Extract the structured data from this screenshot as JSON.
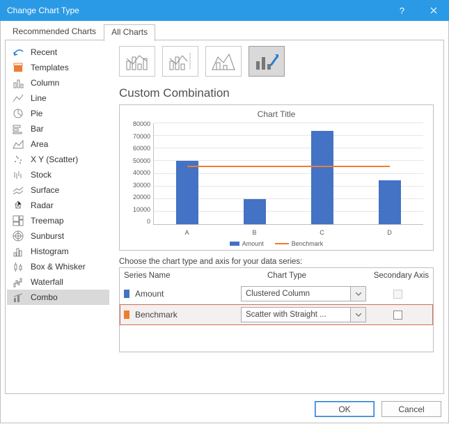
{
  "window": {
    "title": "Change Chart Type"
  },
  "tabs": {
    "recommended": "Recommended Charts",
    "all": "All Charts"
  },
  "sidebar": {
    "items": [
      {
        "label": "Recent"
      },
      {
        "label": "Templates"
      },
      {
        "label": "Column"
      },
      {
        "label": "Line"
      },
      {
        "label": "Pie"
      },
      {
        "label": "Bar"
      },
      {
        "label": "Area"
      },
      {
        "label": "X Y (Scatter)"
      },
      {
        "label": "Stock"
      },
      {
        "label": "Surface"
      },
      {
        "label": "Radar"
      },
      {
        "label": "Treemap"
      },
      {
        "label": "Sunburst"
      },
      {
        "label": "Histogram"
      },
      {
        "label": "Box & Whisker"
      },
      {
        "label": "Waterfall"
      },
      {
        "label": "Combo"
      }
    ],
    "selected_index": 16
  },
  "main": {
    "section_title": "Custom Combination",
    "selected_subtype": 3,
    "chart": {
      "title": "Chart Title",
      "type": "bar",
      "categories": [
        "A",
        "B",
        "C",
        "D"
      ],
      "values": [
        50000,
        20000,
        74000,
        35000
      ],
      "bar_color": "#4472c4",
      "benchmark": {
        "value": 45000,
        "color": "#ed7d31"
      },
      "ylim": [
        0,
        80000
      ],
      "ytick_step": 10000,
      "grid_color": "#e6e6e6",
      "axis_color": "#bfbfbf",
      "label_fontsize": 9,
      "title_fontsize": 12,
      "legend": [
        {
          "label": "Amount",
          "color": "#4472c4",
          "type": "swatch"
        },
        {
          "label": "Benchmark",
          "color": "#ed7d31",
          "type": "line"
        }
      ]
    },
    "grid_prompt": "Choose the chart type and axis for your data series:",
    "grid_headers": {
      "series": "Series Name",
      "type": "Chart Type",
      "axis": "Secondary Axis"
    },
    "series": [
      {
        "name": "Amount",
        "color": "#4472c4",
        "chart_type": "Clustered Column",
        "secondary": false,
        "disabled": true,
        "highlighted": false
      },
      {
        "name": "Benchmark",
        "color": "#ed7d31",
        "chart_type": "Scatter with Straight ...",
        "secondary": false,
        "disabled": false,
        "highlighted": true
      }
    ]
  },
  "buttons": {
    "ok": "OK",
    "cancel": "Cancel"
  },
  "colors": {
    "accent": "#2b9ae6",
    "text": "#444444"
  }
}
